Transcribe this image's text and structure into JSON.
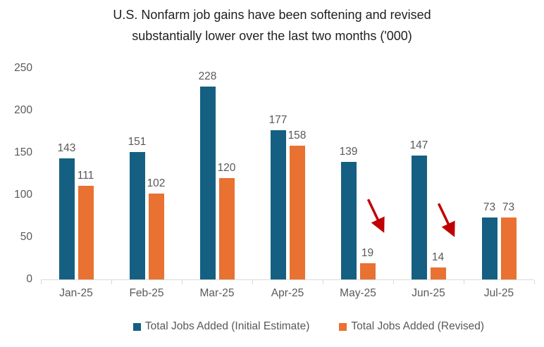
{
  "chart_data": {
    "type": "bar",
    "title": "U.S. Nonfarm job gains have been softening and revised substantially lower over the last two months ('000)",
    "title_lines": [
      "U.S. Nonfarm job gains have been softening and revised",
      "substantially lower over the last two months ('000)"
    ],
    "categories": [
      "Jan-25",
      "Feb-25",
      "Mar-25",
      "Apr-25",
      "May-25",
      "Jun-25",
      "Jul-25"
    ],
    "series": [
      {
        "name": "Total Jobs Added (Initial Estimate)",
        "color": "#156082",
        "values": [
          143,
          151,
          228,
          177,
          139,
          147,
          73
        ]
      },
      {
        "name": "Total Jobs Added (Revised)",
        "color": "#E97132",
        "values": [
          111,
          102,
          120,
          158,
          19,
          14,
          73
        ]
      }
    ],
    "xlabel": "",
    "ylabel": "",
    "ylim": [
      0,
      250
    ],
    "yticks": [
      0,
      50,
      100,
      150,
      200,
      250
    ],
    "grid": false,
    "legend_position": "bottom",
    "annotations": [
      {
        "type": "arrow",
        "direction": "down-right",
        "color": "#C00000",
        "category": "May-25",
        "series": "Total Jobs Added (Revised)"
      },
      {
        "type": "arrow",
        "direction": "down-right",
        "color": "#C00000",
        "category": "Jun-25",
        "series": "Total Jobs Added (Revised)"
      }
    ],
    "colors": {
      "initial_estimate": "#156082",
      "revised": "#E97132",
      "arrow": "#C00000",
      "axis_text": "#595959",
      "title_text": "#1f1f1f",
      "axis_line": "#d9d9d9"
    }
  }
}
